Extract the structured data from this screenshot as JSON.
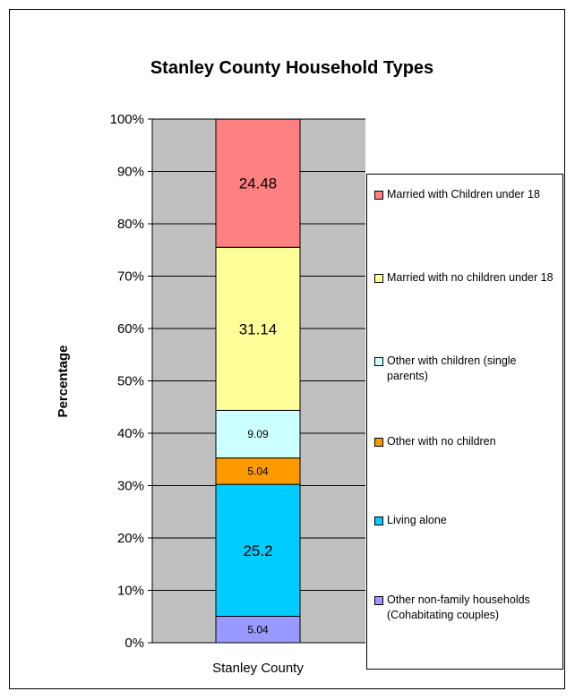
{
  "chart_data": {
    "type": "bar",
    "stacked": true,
    "normalized": true,
    "title": "Stanley County Household Types",
    "ylabel": "Percentage",
    "xlabel": "",
    "categories": [
      "Stanley County"
    ],
    "ylim": [
      0,
      100
    ],
    "yticks": [
      "0%",
      "10%",
      "20%",
      "30%",
      "40%",
      "50%",
      "60%",
      "70%",
      "80%",
      "90%",
      "100%"
    ],
    "grid": true,
    "legend_position": "right",
    "series": [
      {
        "name": "Other non-family households (Cohabitating couples)",
        "values": [
          5.04
        ],
        "color": "#9999ff",
        "label": "5.04"
      },
      {
        "name": "Living alone",
        "values": [
          25.2
        ],
        "color": "#00ccff",
        "label": "25.2"
      },
      {
        "name": "Other with no children",
        "values": [
          5.04
        ],
        "color": "#ff9900",
        "label": "5.04"
      },
      {
        "name": "Other with children (single parents)",
        "values": [
          9.09
        ],
        "color": "#ccffff",
        "label": "9.09"
      },
      {
        "name": "Married with no children under 18",
        "values": [
          31.14
        ],
        "color": "#ffff99",
        "label": "31.14"
      },
      {
        "name": "Married with Children under 18",
        "values": [
          24.48
        ],
        "color": "#ff8080",
        "label": "24.48"
      }
    ],
    "plot_background": "#c0c0c0"
  }
}
